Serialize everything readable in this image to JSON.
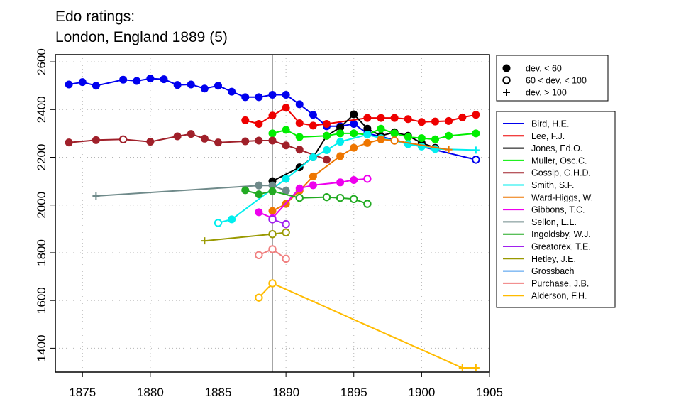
{
  "chart_data": {
    "type": "line",
    "title_lines": [
      "Edo ratings:",
      "London, England 1889 (5)"
    ],
    "xlabel": "",
    "ylabel": "",
    "xlim": [
      1873,
      1905
    ],
    "ylim": [
      1300,
      2630
    ],
    "x_ticks": [
      1875,
      1880,
      1885,
      1890,
      1895,
      1900,
      1905
    ],
    "y_ticks": [
      1400,
      1600,
      1800,
      2000,
      2200,
      2400,
      2600
    ],
    "grid": "dotted",
    "reference_line_x": 1889,
    "marker_legend": [
      {
        "symbol": "filled-circle",
        "label": "dev. < 60"
      },
      {
        "symbol": "open-circle",
        "label": "60 < dev. < 100"
      },
      {
        "symbol": "plus",
        "label": "dev. > 100"
      }
    ],
    "series": [
      {
        "name": "Bird, H.E.",
        "color": "#0000ee",
        "points": [
          [
            1874,
            2505,
            "f"
          ],
          [
            1875,
            2515,
            "f"
          ],
          [
            1876,
            2500,
            "f"
          ],
          [
            1878,
            2525,
            "f"
          ],
          [
            1879,
            2520,
            "f"
          ],
          [
            1880,
            2530,
            "f"
          ],
          [
            1881,
            2527,
            "f"
          ],
          [
            1882,
            2503,
            "f"
          ],
          [
            1883,
            2505,
            "f"
          ],
          [
            1884,
            2488,
            "f"
          ],
          [
            1885,
            2500,
            "f"
          ],
          [
            1886,
            2475,
            "f"
          ],
          [
            1887,
            2452,
            "f"
          ],
          [
            1888,
            2452,
            "f"
          ],
          [
            1889,
            2462,
            "f"
          ],
          [
            1890,
            2462,
            "f"
          ],
          [
            1891,
            2422,
            "f"
          ],
          [
            1892,
            2378,
            "f"
          ],
          [
            1893,
            2330,
            "f"
          ],
          [
            1894,
            2330,
            "f"
          ],
          [
            1895,
            2340,
            "f"
          ],
          [
            1896,
            2300,
            "f"
          ],
          [
            1904,
            2190,
            "o"
          ]
        ]
      },
      {
        "name": "Lee, F.J.",
        "color": "#ee0000",
        "points": [
          [
            1887,
            2355,
            "f"
          ],
          [
            1888,
            2340,
            "f"
          ],
          [
            1889,
            2375,
            "f"
          ],
          [
            1890,
            2408,
            "f"
          ],
          [
            1891,
            2343,
            "f"
          ],
          [
            1892,
            2333,
            "f"
          ],
          [
            1893,
            2340,
            "f"
          ],
          [
            1896,
            2365,
            "f"
          ],
          [
            1897,
            2365,
            "f"
          ],
          [
            1898,
            2365,
            "f"
          ],
          [
            1899,
            2360,
            "f"
          ],
          [
            1900,
            2348,
            "f"
          ],
          [
            1901,
            2350,
            "f"
          ],
          [
            1902,
            2352,
            "f"
          ],
          [
            1903,
            2367,
            "f"
          ],
          [
            1904,
            2378,
            "f"
          ]
        ]
      },
      {
        "name": "Jones, Ed.O.",
        "color": "#000000",
        "points": [
          [
            1889,
            2100,
            "f"
          ],
          [
            1891,
            2158,
            "f"
          ],
          [
            1892,
            2200,
            "f"
          ],
          [
            1893,
            2290,
            "f"
          ],
          [
            1894,
            2325,
            "f"
          ],
          [
            1895,
            2380,
            "f"
          ],
          [
            1896,
            2320,
            "f"
          ],
          [
            1897,
            2290,
            "f"
          ],
          [
            1898,
            2305,
            "f"
          ],
          [
            1899,
            2290,
            "f"
          ],
          [
            1900,
            2260,
            "f"
          ],
          [
            1901,
            2240,
            "f"
          ]
        ]
      },
      {
        "name": "Muller, Osc.C.",
        "color": "#00ee00",
        "points": [
          [
            1889,
            2300,
            "f"
          ],
          [
            1890,
            2315,
            "f"
          ],
          [
            1891,
            2285,
            "f"
          ],
          [
            1893,
            2290,
            "f"
          ],
          [
            1894,
            2300,
            "f"
          ],
          [
            1895,
            2300,
            "f"
          ],
          [
            1896,
            2295,
            "f"
          ],
          [
            1897,
            2320,
            "f"
          ],
          [
            1898,
            2300,
            "f"
          ],
          [
            1899,
            2285,
            "f"
          ],
          [
            1900,
            2280,
            "f"
          ],
          [
            1901,
            2275,
            "f"
          ],
          [
            1902,
            2290,
            "f"
          ],
          [
            1904,
            2300,
            "f"
          ]
        ]
      },
      {
        "name": "Gossip, G.H.D.",
        "color": "#a0202a",
        "points": [
          [
            1874,
            2262,
            "f"
          ],
          [
            1876,
            2272,
            "f"
          ],
          [
            1878,
            2275,
            "o"
          ],
          [
            1880,
            2265,
            "f"
          ],
          [
            1882,
            2288,
            "f"
          ],
          [
            1883,
            2298,
            "f"
          ],
          [
            1884,
            2278,
            "f"
          ],
          [
            1885,
            2262,
            "f"
          ],
          [
            1887,
            2267,
            "f"
          ],
          [
            1888,
            2270,
            "f"
          ],
          [
            1889,
            2270,
            "f"
          ],
          [
            1890,
            2250,
            "f"
          ],
          [
            1891,
            2232,
            "f"
          ],
          [
            1893,
            2190,
            "f"
          ]
        ]
      },
      {
        "name": "Smith, S.F.",
        "color": "#00eeee",
        "points": [
          [
            1885,
            1925,
            "o"
          ],
          [
            1886,
            1940,
            "f"
          ],
          [
            1890,
            2110,
            "f"
          ],
          [
            1892,
            2200,
            "f"
          ],
          [
            1893,
            2230,
            "f"
          ],
          [
            1894,
            2265,
            "f"
          ],
          [
            1896,
            2295,
            "f"
          ],
          [
            1897,
            2280,
            "f"
          ],
          [
            1898,
            2270,
            "f"
          ],
          [
            1899,
            2255,
            "f"
          ],
          [
            1900,
            2245,
            "f"
          ],
          [
            1901,
            2235,
            "f"
          ],
          [
            1904,
            2230,
            "p"
          ]
        ]
      },
      {
        "name": "Ward-Higgs, W.",
        "color": "#ee7600",
        "points": [
          [
            1889,
            1975,
            "f"
          ],
          [
            1890,
            2005,
            "f"
          ],
          [
            1891,
            2060,
            "f"
          ],
          [
            1892,
            2120,
            "f"
          ],
          [
            1894,
            2205,
            "f"
          ],
          [
            1895,
            2240,
            "f"
          ],
          [
            1896,
            2260,
            "f"
          ],
          [
            1897,
            2275,
            "f"
          ],
          [
            1898,
            2270,
            "o"
          ],
          [
            1902,
            2232,
            "p"
          ]
        ]
      },
      {
        "name": "Gibbons, T.C.",
        "color": "#ee00ee",
        "points": [
          [
            1888,
            1970,
            "f"
          ],
          [
            1889,
            1945,
            "f"
          ],
          [
            1891,
            2070,
            "f"
          ],
          [
            1892,
            2083,
            "f"
          ],
          [
            1894,
            2095,
            "f"
          ],
          [
            1895,
            2105,
            "f"
          ],
          [
            1896,
            2110,
            "o"
          ]
        ]
      },
      {
        "name": "Sellon, E.L.",
        "color": "#6f8a8a",
        "points": [
          [
            1876,
            2038,
            "p"
          ],
          [
            1888,
            2082,
            "f"
          ],
          [
            1889,
            2082,
            "f"
          ],
          [
            1890,
            2060,
            "f"
          ]
        ]
      },
      {
        "name": "Ingoldsby, W.J.",
        "color": "#22aa22",
        "points": [
          [
            1887,
            2062,
            "f"
          ],
          [
            1888,
            2045,
            "f"
          ],
          [
            1889,
            2058,
            "f"
          ],
          [
            1891,
            2030,
            "o"
          ],
          [
            1893,
            2033,
            "o"
          ],
          [
            1894,
            2030,
            "o"
          ],
          [
            1895,
            2025,
            "o"
          ],
          [
            1896,
            2005,
            "o"
          ]
        ]
      },
      {
        "name": "Greatorex, T.E.",
        "color": "#a020ee",
        "points": [
          [
            1889,
            1940,
            "o"
          ],
          [
            1890,
            1920,
            "o"
          ]
        ]
      },
      {
        "name": "Hetley, J.E.",
        "color": "#999900",
        "points": [
          [
            1884,
            1850,
            "p"
          ],
          [
            1889,
            1878,
            "o"
          ],
          [
            1890,
            1885,
            "o"
          ]
        ]
      },
      {
        "name": "Grossbach",
        "color": "#4499ee",
        "points": []
      },
      {
        "name": "Purchase, J.B.",
        "color": "#f08080",
        "points": [
          [
            1888,
            1790,
            "o"
          ],
          [
            1889,
            1815,
            "o"
          ],
          [
            1890,
            1775,
            "o"
          ]
        ]
      },
      {
        "name": "Alderson, F.H.",
        "color": "#ffbb00",
        "points": [
          [
            1888,
            1612,
            "o"
          ],
          [
            1889,
            1672,
            "o"
          ],
          [
            1903,
            1318,
            "p"
          ],
          [
            1904,
            1318,
            "p"
          ]
        ]
      }
    ]
  }
}
